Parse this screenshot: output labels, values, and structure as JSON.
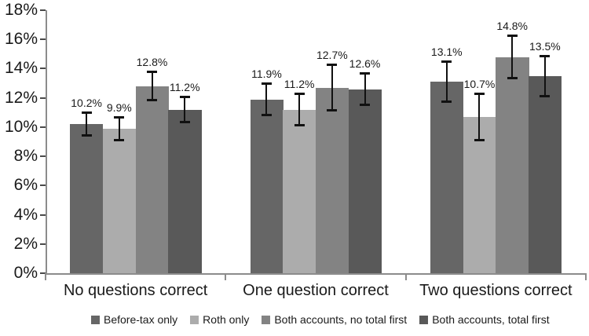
{
  "chart_data": {
    "type": "bar",
    "title": "",
    "xlabel": "",
    "ylabel": "",
    "grid": false,
    "legend_position": "bottom",
    "categories": [
      "No questions correct",
      "One question correct",
      "Two questions correct"
    ],
    "series": [
      {
        "name": "Before-tax only",
        "color": "#666666",
        "values": [
          10.2,
          11.9,
          13.1
        ],
        "errors": [
          0.8,
          1.1,
          1.4
        ],
        "labels": [
          "10.2%",
          "11.9%",
          "13.1%"
        ]
      },
      {
        "name": "Roth only",
        "color": "#acacac",
        "values": [
          9.9,
          11.2,
          10.7
        ],
        "errors": [
          0.8,
          1.1,
          1.6
        ],
        "labels": [
          "9.9%",
          "11.2%",
          "10.7%"
        ]
      },
      {
        "name": "Both accounts, no total first",
        "color": "#838383",
        "values": [
          12.8,
          12.7,
          14.8
        ],
        "errors": [
          1.0,
          1.6,
          1.5
        ],
        "labels": [
          "12.8%",
          "12.7%",
          "14.8%"
        ]
      },
      {
        "name": "Both accounts, total first",
        "color": "#595959",
        "values": [
          11.2,
          12.6,
          13.5
        ],
        "errors": [
          0.9,
          1.1,
          1.4
        ],
        "labels": [
          "11.2%",
          "12.6%",
          "13.5%"
        ]
      }
    ],
    "y_axis": {
      "min": 0,
      "max": 18,
      "step": 2,
      "ticks": [
        "0%",
        "2%",
        "4%",
        "6%",
        "8%",
        "10%",
        "12%",
        "14%",
        "16%",
        "18%"
      ]
    },
    "colors": {
      "error_bar": "#111111",
      "axis": "#8c8c8c",
      "text": "#1a1a1a",
      "background": "#ffffff"
    }
  }
}
